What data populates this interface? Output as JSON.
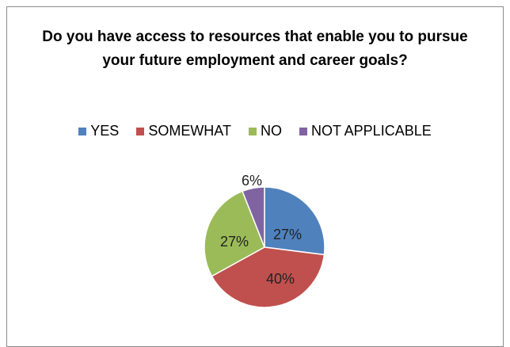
{
  "chart_data": {
    "type": "pie",
    "title": "Do you have access to resources that enable you to pursue your future employment and career goals?",
    "legend_position": "top",
    "categories": [
      "YES",
      "SOMEWHAT",
      "NO",
      "NOT APPLICABLE"
    ],
    "values": [
      27,
      40,
      27,
      6
    ],
    "labels": [
      "27%",
      "40%",
      "27%",
      "6%"
    ],
    "colors": [
      "#4f81bd",
      "#c0504d",
      "#9bbb59",
      "#8064a2"
    ]
  }
}
